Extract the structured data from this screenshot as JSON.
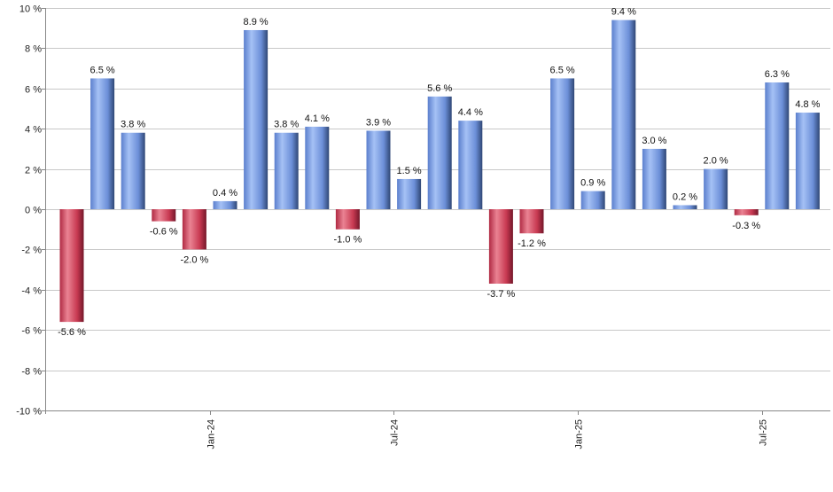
{
  "chart_data": {
    "type": "bar",
    "title": "",
    "xlabel": "",
    "ylabel": "",
    "ylim": [
      -10,
      10
    ],
    "y_ticks": [
      10,
      8,
      6,
      4,
      2,
      0,
      -2,
      -4,
      -6,
      -8,
      -10
    ],
    "y_tick_labels": [
      "10 %",
      "8 %",
      "6 %",
      "4 %",
      "2 %",
      "0 %",
      "-2 %",
      "-4 %",
      "-6 %",
      "-8 %",
      "-10 %"
    ],
    "grid": true,
    "legend": "none",
    "colors": {
      "positive": "#6f93de",
      "negative": "#c83a52"
    },
    "values": [
      -5.6,
      6.5,
      3.8,
      -0.6,
      -2.0,
      0.4,
      8.9,
      3.8,
      4.1,
      -1.0,
      3.9,
      1.5,
      5.6,
      4.4,
      -3.7,
      -1.2,
      6.5,
      0.9,
      9.4,
      3.0,
      0.2,
      2.0,
      -0.3,
      6.3,
      4.8
    ],
    "data_labels": [
      "-5.6 %",
      "6.5 %",
      "3.8 %",
      "-0.6 %",
      "-2.0 %",
      "0.4 %",
      "8.9 %",
      "3.8 %",
      "4.1 %",
      "-1.0 %",
      "3.9 %",
      "1.5 %",
      "5.6 %",
      "4.4 %",
      "-3.7 %",
      "-1.2 %",
      "6.5 %",
      "0.9 %",
      "9.4 %",
      "3.0 %",
      "0.2 %",
      "2.0 %",
      "-0.3 %",
      "6.3 %",
      "4.8 %"
    ],
    "x_tick_labels": [
      {
        "bar_index": 4.5,
        "label": "Jan-24"
      },
      {
        "bar_index": 10.5,
        "label": "Jul-24"
      },
      {
        "bar_index": 16.5,
        "label": "Jan-25"
      },
      {
        "bar_index": 22.5,
        "label": "Jul-25"
      }
    ]
  }
}
